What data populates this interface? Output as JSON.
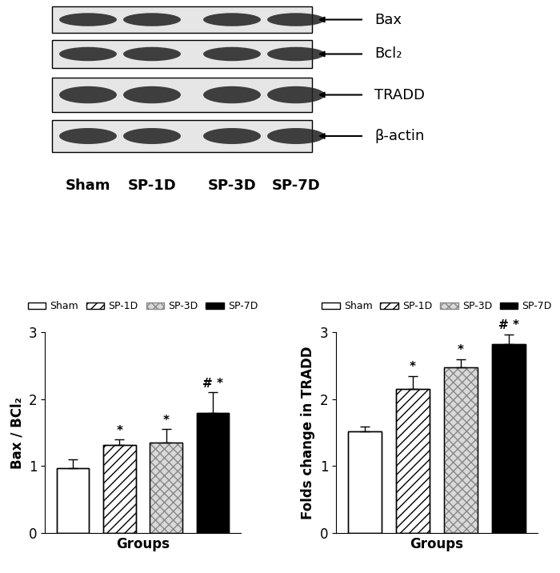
{
  "blot": {
    "proteins": [
      "Bax",
      "Bcl₂",
      "TRADD",
      "β-actin"
    ],
    "lanes": [
      "Sham",
      "SP-1D",
      "SP-3D",
      "SP-7D"
    ]
  },
  "chart_data": [
    {
      "type": "bar",
      "ylabel": "Bax / BCl₂",
      "xlabel": "Groups",
      "categories": [
        "Sham",
        "SP-1D",
        "SP-3D",
        "SP-7D"
      ],
      "values": [
        0.97,
        1.32,
        1.35,
        1.8
      ],
      "errors": [
        0.13,
        0.08,
        0.2,
        0.3
      ],
      "significance": [
        null,
        "*",
        "*",
        "# *"
      ],
      "colors": [
        "#ffffff",
        "#ffffff",
        "#d9d9d9",
        "#000000"
      ],
      "ylim": [
        0,
        3
      ],
      "yticks": [
        0,
        1,
        2,
        3
      ],
      "legend": "upper center",
      "tick_labels": "y"
    },
    {
      "type": "bar",
      "ylabel": "Folds change in TRADD",
      "xlabel": "Groups",
      "categories": [
        "Sham",
        "SP-1D",
        "SP-3D",
        "SP-7D"
      ],
      "values": [
        1.52,
        2.15,
        2.48,
        2.82
      ],
      "errors": [
        0.07,
        0.2,
        0.12,
        0.15
      ],
      "significance": [
        null,
        "*",
        "*",
        "# *"
      ],
      "colors": [
        "#ffffff",
        "#ffffff",
        "#d9d9d9",
        "#000000"
      ],
      "ylim": [
        0,
        3
      ],
      "yticks": [
        0,
        1,
        2,
        3
      ],
      "legend": "upper center",
      "tick_labels": "y"
    }
  ]
}
